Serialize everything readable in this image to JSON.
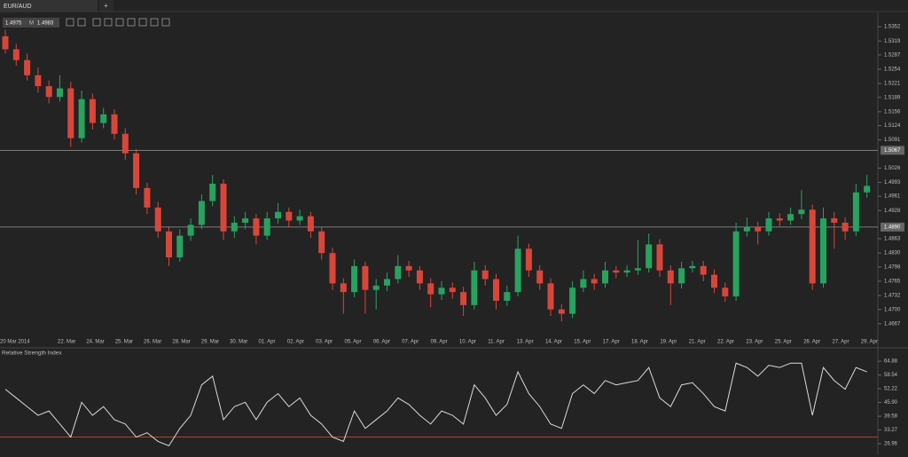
{
  "tab": "EUR/AUD",
  "quote": {
    "bid": "1.4975",
    "mode": "M",
    "ask": "1.4983"
  },
  "chart_data": [
    {
      "type": "candlestick",
      "up_color": "#27a35f",
      "down_color": "#d8463a",
      "ylim": [
        1.464,
        1.5385
      ],
      "yticks": [
        1.5352,
        1.5319,
        1.5287,
        1.5254,
        1.5221,
        1.5189,
        1.5156,
        1.5124,
        1.5091,
        1.5026,
        1.4993,
        1.4961,
        1.4928,
        1.4863,
        {
          "value": 1.483,
          "label": "1.4830"
        },
        1.4798,
        1.4765,
        1.4732,
        {
          "value": 1.47,
          "label": "1.4700"
        },
        1.4667
      ],
      "levels": [
        {
          "value": 1.5067,
          "label": "1.5067"
        },
        {
          "value": 1.489,
          "label": "1.4890"
        }
      ],
      "date_labels": [
        "20 Mar 2014",
        "22. Mar",
        "24. Mar",
        "25. Mar",
        "26. Mar",
        "28. Mar",
        "29. Mar",
        "30. Mar",
        "01. Apr",
        "02. Apr",
        "03. Apr",
        "05. Apr",
        "06. Apr",
        "07. Apr",
        "09. Apr",
        "10. Apr",
        "11. Apr",
        "13. Apr",
        "14. Apr",
        "15. Apr",
        "17. Apr",
        "18. Apr",
        "19. Apr",
        "21. Apr",
        "22. Apr",
        "23. Apr",
        "25. Apr",
        "26. Apr",
        "27. Apr",
        "29. Apr"
      ],
      "ohlc": [
        [
          1.533,
          1.5345,
          1.529,
          1.53
        ],
        [
          1.53,
          1.5312,
          1.5262,
          1.5275
        ],
        [
          1.5275,
          1.529,
          1.5228,
          1.524
        ],
        [
          1.524,
          1.5258,
          1.52,
          1.5215
        ],
        [
          1.5215,
          1.5228,
          1.5175,
          1.519
        ],
        [
          1.519,
          1.524,
          1.518,
          1.521
        ],
        [
          1.521,
          1.5225,
          1.5075,
          1.5095
        ],
        [
          1.5095,
          1.5205,
          1.5085,
          1.5185
        ],
        [
          1.5185,
          1.5198,
          1.5115,
          1.513
        ],
        [
          1.513,
          1.5165,
          1.5118,
          1.515
        ],
        [
          1.515,
          1.5162,
          1.5092,
          1.5105
        ],
        [
          1.5105,
          1.5118,
          1.5045,
          1.506
        ],
        [
          1.506,
          1.507,
          1.4965,
          1.498
        ],
        [
          1.498,
          1.4992,
          1.492,
          1.4935
        ],
        [
          1.4935,
          1.4948,
          1.4865,
          1.488
        ],
        [
          1.488,
          1.4892,
          1.48,
          1.482
        ],
        [
          1.482,
          1.4885,
          1.481,
          1.487
        ],
        [
          1.487,
          1.491,
          1.4858,
          1.4895
        ],
        [
          1.4895,
          1.4965,
          1.4885,
          1.495
        ],
        [
          1.495,
          1.501,
          1.4938,
          1.499
        ],
        [
          1.499,
          1.5,
          1.486,
          1.488
        ],
        [
          1.488,
          1.4915,
          1.4865,
          1.49
        ],
        [
          1.49,
          1.4925,
          1.4885,
          1.491
        ],
        [
          1.491,
          1.492,
          1.485,
          1.487
        ],
        [
          1.487,
          1.4925,
          1.486,
          1.491
        ],
        [
          1.491,
          1.4945,
          1.4898,
          1.4925
        ],
        [
          1.4925,
          1.4935,
          1.489,
          1.4905
        ],
        [
          1.4905,
          1.493,
          1.4895,
          1.4915
        ],
        [
          1.4915,
          1.4925,
          1.4865,
          1.488
        ],
        [
          1.488,
          1.489,
          1.4815,
          1.483
        ],
        [
          1.483,
          1.4842,
          1.4745,
          1.476
        ],
        [
          1.476,
          1.4772,
          1.469,
          1.474
        ],
        [
          1.474,
          1.4815,
          1.4728,
          1.48
        ],
        [
          1.48,
          1.481,
          1.469,
          1.4745
        ],
        [
          1.4745,
          1.477,
          1.47,
          1.4755
        ],
        [
          1.4755,
          1.4785,
          1.4742,
          1.477
        ],
        [
          1.477,
          1.4825,
          1.476,
          1.48
        ],
        [
          1.48,
          1.4812,
          1.4775,
          1.479
        ],
        [
          1.479,
          1.48,
          1.4745,
          1.476
        ],
        [
          1.476,
          1.4772,
          1.4705,
          1.4735
        ],
        [
          1.4735,
          1.4765,
          1.4722,
          1.475
        ],
        [
          1.475,
          1.4762,
          1.4725,
          1.474
        ],
        [
          1.474,
          1.4752,
          1.4685,
          1.471
        ],
        [
          1.471,
          1.481,
          1.47,
          1.479
        ],
        [
          1.479,
          1.4802,
          1.4755,
          1.477
        ],
        [
          1.477,
          1.4782,
          1.47,
          1.472
        ],
        [
          1.472,
          1.4755,
          1.4708,
          1.474
        ],
        [
          1.474,
          1.487,
          1.473,
          1.484
        ],
        [
          1.484,
          1.4852,
          1.4775,
          1.479
        ],
        [
          1.479,
          1.4802,
          1.4745,
          1.476
        ],
        [
          1.476,
          1.4772,
          1.4685,
          1.47
        ],
        [
          1.47,
          1.4712,
          1.4672,
          1.469
        ],
        [
          1.469,
          1.4765,
          1.468,
          1.475
        ],
        [
          1.475,
          1.479,
          1.474,
          1.477
        ],
        [
          1.477,
          1.4782,
          1.4745,
          1.476
        ],
        [
          1.476,
          1.481,
          1.475,
          1.479
        ],
        [
          1.479,
          1.48,
          1.4772,
          1.4785
        ],
        [
          1.4785,
          1.4802,
          1.4775,
          1.479
        ],
        [
          1.479,
          1.486,
          1.478,
          1.4795
        ],
        [
          1.4795,
          1.4875,
          1.4785,
          1.485
        ],
        [
          1.485,
          1.4862,
          1.4775,
          1.479
        ],
        [
          1.479,
          1.4802,
          1.471,
          1.476
        ],
        [
          1.476,
          1.481,
          1.4748,
          1.4795
        ],
        [
          1.4795,
          1.4812,
          1.4785,
          1.48
        ],
        [
          1.48,
          1.4812,
          1.4765,
          1.478
        ],
        [
          1.478,
          1.4792,
          1.4738,
          1.475
        ],
        [
          1.475,
          1.4762,
          1.4718,
          1.473
        ],
        [
          1.473,
          1.49,
          1.472,
          1.488
        ],
        [
          1.488,
          1.4912,
          1.4868,
          1.489
        ],
        [
          1.489,
          1.4902,
          1.485,
          1.488
        ],
        [
          1.488,
          1.4925,
          1.487,
          1.491
        ],
        [
          1.491,
          1.4922,
          1.4892,
          1.4905
        ],
        [
          1.4905,
          1.4935,
          1.4895,
          1.492
        ],
        [
          1.492,
          1.4975,
          1.4908,
          1.493
        ],
        [
          1.493,
          1.4942,
          1.4745,
          1.476
        ],
        [
          1.476,
          1.4935,
          1.475,
          1.491
        ],
        [
          1.491,
          1.4925,
          1.484,
          1.49
        ],
        [
          1.49,
          1.4912,
          1.486,
          1.488
        ],
        [
          1.488,
          1.499,
          1.487,
          1.497
        ],
        [
          1.497,
          1.501,
          1.4958,
          1.4985
        ]
      ]
    },
    {
      "type": "line",
      "title": "Relative Strength Index",
      "color": "#d9d9d9",
      "ylim": [
        22.06,
        69.4
      ],
      "yticks": [
        64.88,
        58.54,
        52.22,
        {
          "value": 45.9,
          "label": "45.90"
        },
        39.58,
        33.27,
        26.96
      ],
      "level": 30,
      "level_color": "#c0392b",
      "values": [
        52,
        48,
        44,
        40,
        42,
        36,
        30,
        46,
        40,
        44,
        38,
        36,
        30,
        32,
        28,
        26,
        34,
        40,
        54,
        58,
        38,
        44,
        46,
        38,
        46,
        50,
        44,
        48,
        40,
        36,
        30,
        28,
        42,
        34,
        38,
        42,
        48,
        45,
        40,
        36,
        42,
        40,
        36,
        54,
        48,
        40,
        45,
        60,
        50,
        44,
        36,
        34,
        50,
        54,
        50,
        56,
        54,
        55,
        56,
        62,
        48,
        44,
        54,
        55,
        50,
        44,
        42,
        64,
        62,
        58,
        63,
        62,
        64,
        64,
        40,
        62,
        56,
        52,
        62,
        60
      ]
    }
  ]
}
